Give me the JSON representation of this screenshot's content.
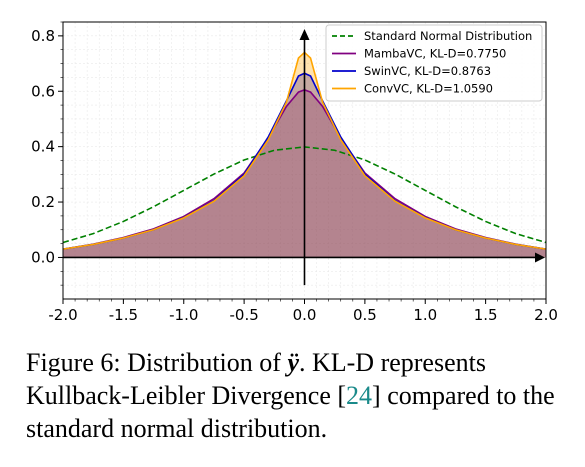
{
  "chart_data": {
    "type": "area",
    "x_range": [
      -2.0,
      2.0
    ],
    "y_range": [
      -0.15,
      0.85
    ],
    "x_ticks": [
      "-2.0",
      "-1.5",
      "-1.0",
      "-0.5",
      "0.0",
      "0.5",
      "1.0",
      "1.5",
      "2.0"
    ],
    "y_ticks": [
      "0.0",
      "0.2",
      "0.4",
      "0.6",
      "0.8"
    ],
    "grid": true,
    "legend_position": "top-right",
    "series": [
      {
        "name": "Standard Normal Distribution",
        "color": "#008000",
        "style": "dashed",
        "x": [
          -2.0,
          -1.75,
          -1.5,
          -1.25,
          -1.0,
          -0.75,
          -0.5,
          -0.25,
          0.0,
          0.25,
          0.5,
          0.75,
          1.0,
          1.25,
          1.5,
          1.75,
          2.0
        ],
        "y": [
          0.054,
          0.086,
          0.13,
          0.183,
          0.242,
          0.301,
          0.352,
          0.387,
          0.399,
          0.387,
          0.352,
          0.301,
          0.242,
          0.183,
          0.13,
          0.086,
          0.054
        ]
      },
      {
        "name": "MambaVC, KL-D=0.7750",
        "color": "#800080",
        "style": "solid",
        "x": [
          -2.0,
          -1.75,
          -1.5,
          -1.25,
          -1.0,
          -0.75,
          -0.5,
          -0.3,
          -0.15,
          -0.05,
          0.0,
          0.05,
          0.15,
          0.3,
          0.5,
          0.75,
          1.0,
          1.25,
          1.5,
          1.75,
          2.0
        ],
        "y": [
          0.03,
          0.048,
          0.072,
          0.103,
          0.148,
          0.212,
          0.305,
          0.432,
          0.545,
          0.597,
          0.605,
          0.597,
          0.545,
          0.432,
          0.305,
          0.212,
          0.148,
          0.103,
          0.072,
          0.048,
          0.03
        ]
      },
      {
        "name": "SwinVC, KL-D=0.8763",
        "color": "#0000cc",
        "style": "solid",
        "x": [
          -2.0,
          -1.75,
          -1.5,
          -1.25,
          -1.0,
          -0.75,
          -0.5,
          -0.3,
          -0.15,
          -0.05,
          0.0,
          0.05,
          0.15,
          0.3,
          0.5,
          0.75,
          1.0,
          1.25,
          1.5,
          1.75,
          2.0
        ],
        "y": [
          0.03,
          0.047,
          0.07,
          0.1,
          0.144,
          0.205,
          0.3,
          0.435,
          0.565,
          0.655,
          0.665,
          0.655,
          0.565,
          0.435,
          0.3,
          0.205,
          0.144,
          0.1,
          0.07,
          0.047,
          0.03
        ]
      },
      {
        "name": "ConvVC, KL-D=1.0590",
        "color": "#ffa500",
        "style": "solid",
        "x": [
          -2.0,
          -1.75,
          -1.5,
          -1.25,
          -1.0,
          -0.75,
          -0.5,
          -0.3,
          -0.15,
          -0.05,
          0.0,
          0.05,
          0.15,
          0.3,
          0.5,
          0.75,
          1.0,
          1.25,
          1.5,
          1.75,
          2.0
        ],
        "y": [
          0.03,
          0.047,
          0.07,
          0.1,
          0.143,
          0.203,
          0.295,
          0.425,
          0.56,
          0.72,
          0.74,
          0.72,
          0.56,
          0.425,
          0.295,
          0.203,
          0.143,
          0.1,
          0.07,
          0.047,
          0.03
        ]
      }
    ]
  },
  "caption": {
    "prefix": "Figure 6: Distribution of ",
    "variable": "ÿ",
    "middle": ". KL-D represents Kullback-Leibler Divergence [",
    "ref": "24",
    "suffix": "] compared to the standard normal distribution."
  }
}
